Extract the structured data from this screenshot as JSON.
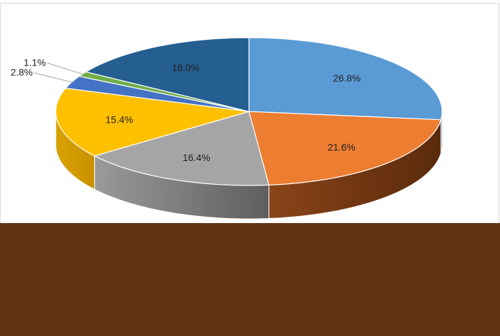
{
  "chart_data": {
    "type": "pie",
    "style": "3d",
    "start_angle_deg": 0,
    "direction": "clockwise",
    "slices": [
      {
        "label": "26.8%",
        "value": 26.8,
        "color": "#5B9BD5",
        "side": "#41719C"
      },
      {
        "label": "21.6%",
        "value": 21.6,
        "color": "#ED7D31",
        "side": "#AE5A21"
      },
      {
        "label": "16.4%",
        "value": 16.4,
        "color": "#A5A5A5",
        "side": "#7B7B7B"
      },
      {
        "label": "15.4%",
        "value": 15.4,
        "color": "#FFC000",
        "side": "#BC8C00"
      },
      {
        "label": "2.8%",
        "value": 2.8,
        "color": "#4472C4",
        "side": "#2F528F"
      },
      {
        "label": "1.1%",
        "value": 1.1,
        "color": "#70AD47",
        "side": "#507E32"
      },
      {
        "label": "16.0%",
        "value": 16.0,
        "color": "#255E91",
        "side": "#1A4468"
      }
    ]
  },
  "overlay_color": "#603312"
}
